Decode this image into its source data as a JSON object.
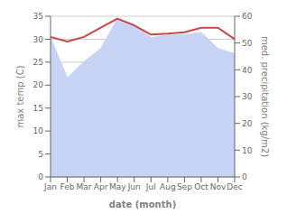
{
  "chart_data": {
    "type": "line",
    "xlabel": "date (month)",
    "ylabel": "max temp (C)",
    "y2label": "med. precipitation (kg/m2)",
    "categories": [
      "Jan",
      "Feb",
      "Mar",
      "Apr",
      "May",
      "Jun",
      "Jul",
      "Aug",
      "Sep",
      "Oct",
      "Nov",
      "Dec"
    ],
    "series": [
      {
        "type": "area",
        "axis": "y2",
        "color": "#c8d4f5",
        "values": [
          52.0,
          37.0,
          43.0,
          48.0,
          59.0,
          57.0,
          52.0,
          53.0,
          53.0,
          54.0,
          48.0,
          46.0
        ]
      },
      {
        "type": "line",
        "color": "#cc4444",
        "values": [
          30.5,
          29.5,
          30.5,
          32.5,
          34.5,
          33.0,
          31.0,
          31.2,
          31.5,
          32.5,
          32.5,
          30.0
        ]
      }
    ],
    "ylim": [
      0,
      35
    ],
    "yticks": [
      0,
      5,
      10,
      15,
      20,
      25,
      30,
      35
    ],
    "y2lim": [
      0,
      60
    ],
    "y2ticks": [
      0,
      10,
      20,
      30,
      40,
      50,
      60
    ],
    "grid": true
  }
}
